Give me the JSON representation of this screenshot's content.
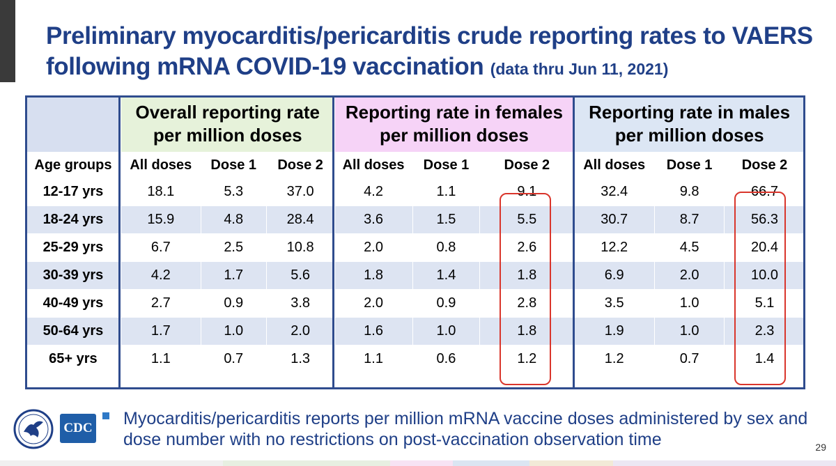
{
  "title": {
    "main": "Preliminary myocarditis/pericarditis crude reporting rates to VAERS following mRNA COVID-19 vaccination",
    "sub": "(data thru Jun 11, 2021)"
  },
  "table": {
    "groups": {
      "overall": "Overall reporting rate per million doses",
      "females": "Reporting rate in females per million doses",
      "males": "Reporting rate in males per million doses"
    },
    "age_header": "Age groups",
    "dose_headers": [
      "All doses",
      "Dose 1",
      "Dose 2",
      "All doses",
      "Dose 1",
      "Dose 2",
      "All doses",
      "Dose 1",
      "Dose 2"
    ],
    "rows": [
      {
        "age": "12-17 yrs",
        "values": [
          "18.1",
          "5.3",
          "37.0",
          "4.2",
          "1.1",
          "9.1",
          "32.4",
          "9.8",
          "66.7"
        ]
      },
      {
        "age": "18-24 yrs",
        "values": [
          "15.9",
          "4.8",
          "28.4",
          "3.6",
          "1.5",
          "5.5",
          "30.7",
          "8.7",
          "56.3"
        ]
      },
      {
        "age": "25-29 yrs",
        "values": [
          "6.7",
          "2.5",
          "10.8",
          "2.0",
          "0.8",
          "2.6",
          "12.2",
          "4.5",
          "20.4"
        ]
      },
      {
        "age": "30-39 yrs",
        "values": [
          "4.2",
          "1.7",
          "5.6",
          "1.8",
          "1.4",
          "1.8",
          "6.9",
          "2.0",
          "10.0"
        ]
      },
      {
        "age": "40-49 yrs",
        "values": [
          "2.7",
          "0.9",
          "3.8",
          "2.0",
          "0.9",
          "2.8",
          "3.5",
          "1.0",
          "5.1"
        ]
      },
      {
        "age": "50-64 yrs",
        "values": [
          "1.7",
          "1.0",
          "2.0",
          "1.6",
          "1.0",
          "1.8",
          "1.9",
          "1.0",
          "2.3"
        ]
      },
      {
        "age": "65+ yrs",
        "values": [
          "1.1",
          "0.7",
          "1.3",
          "1.1",
          "0.6",
          "1.2",
          "1.2",
          "0.7",
          "1.4"
        ]
      }
    ]
  },
  "footnote": "Myocarditis/pericarditis reports per million mRNA vaccine doses administered by sex and dose number with no restrictions on post-vaccination observation time",
  "logo": {
    "text": "CDC"
  },
  "page_number": "29",
  "colors": {
    "title": "#1f3f87",
    "frame": "#2f4c8e",
    "overall_header": "#e6f2da",
    "females_header": "#f6d3f7",
    "males_header": "#dce6f4",
    "highlight_oval": "#d9352b",
    "bullet": "#2e79c7"
  }
}
